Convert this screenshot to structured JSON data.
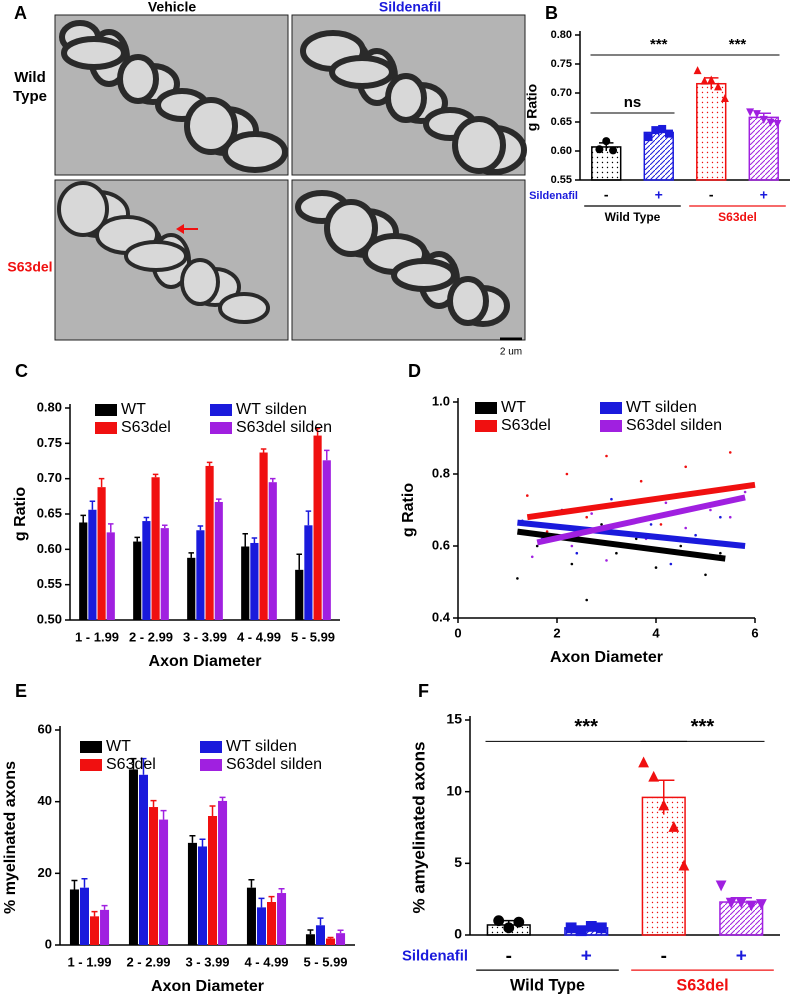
{
  "micrographs": {
    "panel": "A",
    "columns": [
      "Vehicle",
      "Sildenafil"
    ],
    "rows": [
      "Wild Type",
      "S63del"
    ],
    "scale_bar": "2 um"
  },
  "chart_data": [
    {
      "panel": "B",
      "type": "bar_dots",
      "y_label": "g Ratio",
      "ylim": [
        0.55,
        0.8
      ],
      "yticks": [
        0.55,
        {
          "value": 0.6,
          "label": "0.60"
        },
        0.65,
        {
          "value": 0.7,
          "label": "0.70"
        },
        0.75,
        {
          "value": 0.8,
          "label": "0.80"
        }
      ],
      "categories": [
        "-",
        "+",
        "-",
        "+"
      ],
      "colors": [
        "#000000",
        "#1a1adc",
        "#f01010",
        "#a020e0"
      ],
      "values": [
        0.607,
        0.632,
        0.716,
        0.658
      ],
      "errors": [
        0.007,
        0.005,
        0.01,
        0.007
      ],
      "points": [
        [
          0.603,
          0.617,
          0.601
        ],
        [
          0.624,
          0.636,
          0.638,
          0.63
        ],
        [
          0.738,
          0.72,
          0.722,
          0.71,
          0.69
        ],
        [
          0.668,
          0.665,
          0.655,
          0.65,
          0.648
        ]
      ],
      "row_label": "Sildenafil",
      "group_labels": [
        "Wild Type",
        "S63del"
      ],
      "annotations": [
        {
          "text": "***",
          "between": [
            0,
            2
          ]
        },
        {
          "text": "ns",
          "between": [
            0,
            1
          ]
        },
        {
          "text": "***",
          "between": [
            2,
            3
          ]
        }
      ]
    },
    {
      "panel": "C",
      "type": "grouped_bar",
      "y_label": "g  Ratio",
      "x_label": "Axon Diameter",
      "ylim": [
        0.5,
        0.8
      ],
      "yticks": [
        {
          "value": 0.5,
          "label": "0.50"
        },
        0.55,
        {
          "value": 0.6,
          "label": "0.60"
        },
        0.65,
        {
          "value": 0.7,
          "label": "0.70"
        },
        0.75,
        {
          "value": 0.8,
          "label": "0.80"
        }
      ],
      "categories": [
        "1 - 1.99",
        "2 - 2.99",
        "3 - 3.99",
        "4 - 4.99",
        "5 - 5.99"
      ],
      "series": [
        {
          "name": "WT",
          "color": "#000000",
          "values": [
            0.638,
            0.611,
            0.588,
            0.604,
            0.571
          ],
          "errors": [
            0.01,
            0.006,
            0.007,
            0.018,
            0.022
          ]
        },
        {
          "name": "WT silden",
          "color": "#1a1adc",
          "values": [
            0.656,
            0.64,
            0.627,
            0.609,
            0.634
          ],
          "errors": [
            0.012,
            0.005,
            0.006,
            0.007,
            0.02
          ]
        },
        {
          "name": "S63del",
          "color": "#f01010",
          "values": [
            0.688,
            0.702,
            0.718,
            0.737,
            0.761
          ],
          "errors": [
            0.012,
            0.004,
            0.005,
            0.005,
            0.01
          ]
        },
        {
          "name": "S63del silden",
          "color": "#a020e0",
          "values": [
            0.624,
            0.63,
            0.667,
            0.695,
            0.726
          ],
          "errors": [
            0.012,
            0.004,
            0.004,
            0.005,
            0.014
          ]
        }
      ]
    },
    {
      "panel": "D",
      "type": "scatter",
      "y_label": "g Ratio",
      "x_label": "Axon Diameter",
      "xlim": [
        0,
        6
      ],
      "xticks": [
        0,
        2,
        4,
        6
      ],
      "ylim": [
        0.4,
        1.0
      ],
      "yticks": [
        0.4,
        0.6,
        0.8,
        {
          "value": 1.0,
          "label": "1.0"
        }
      ],
      "series": [
        {
          "name": "WT",
          "color": "#000000",
          "x": [
            1.2,
            1.6,
            2.0,
            2.3,
            2.6,
            2.9,
            3.2,
            3.6,
            4.0,
            4.5,
            5.0,
            5.3
          ],
          "y": [
            0.51,
            0.6,
            0.63,
            0.55,
            0.45,
            0.66,
            0.58,
            0.62,
            0.54,
            0.6,
            0.52,
            0.58
          ],
          "fit_x": [
            1.2,
            5.4
          ],
          "fit_y": [
            0.64,
            0.565
          ]
        },
        {
          "name": "WT silden",
          "color": "#1a1adc",
          "x": [
            1.3,
            1.7,
            2.1,
            2.4,
            2.8,
            3.1,
            3.5,
            3.9,
            4.3,
            4.8,
            5.3,
            5.7
          ],
          "y": [
            0.67,
            0.62,
            0.7,
            0.58,
            0.64,
            0.73,
            0.6,
            0.66,
            0.55,
            0.63,
            0.68,
            0.6
          ],
          "fit_x": [
            1.2,
            5.8
          ],
          "fit_y": [
            0.665,
            0.6
          ]
        },
        {
          "name": "S63del",
          "color": "#f01010",
          "x": [
            1.4,
            1.8,
            2.2,
            2.6,
            3.0,
            3.3,
            3.7,
            4.1,
            4.6,
            5.0,
            5.5,
            5.8
          ],
          "y": [
            0.74,
            0.64,
            0.8,
            0.68,
            0.85,
            0.72,
            0.78,
            0.66,
            0.82,
            0.75,
            0.86,
            0.77
          ],
          "fit_x": [
            1.4,
            6.0
          ],
          "fit_y": [
            0.68,
            0.77
          ]
        },
        {
          "name": "S63del silden",
          "color": "#a020e0",
          "x": [
            1.5,
            1.9,
            2.3,
            2.7,
            3.0,
            3.4,
            3.8,
            4.2,
            4.6,
            5.1,
            5.5,
            5.8
          ],
          "y": [
            0.57,
            0.63,
            0.6,
            0.69,
            0.56,
            0.66,
            0.62,
            0.72,
            0.65,
            0.7,
            0.68,
            0.75
          ],
          "fit_x": [
            1.6,
            5.8
          ],
          "fit_y": [
            0.61,
            0.735
          ]
        }
      ]
    },
    {
      "panel": "E",
      "type": "grouped_bar",
      "y_label": "% myelinated axons",
      "x_label": "Axon Diameter",
      "ylim": [
        0,
        60
      ],
      "yticks": [
        0,
        20,
        40,
        60
      ],
      "categories": [
        "1 - 1.99",
        "2 - 2.99",
        "3 - 3.99",
        "4 - 4.99",
        "5 - 5.99"
      ],
      "series": [
        {
          "name": "WT",
          "color": "#000000",
          "values": [
            15.5,
            49,
            28.5,
            16,
            3
          ],
          "errors": [
            2.5,
            3,
            2,
            2.2,
            1.2
          ]
        },
        {
          "name": "WT silden",
          "color": "#1a1adc",
          "values": [
            16,
            47.5,
            27.5,
            10.5,
            5.5
          ],
          "errors": [
            2.5,
            4.5,
            2,
            2.5,
            2
          ]
        },
        {
          "name": "S63del",
          "color": "#f01010",
          "values": [
            8,
            38.5,
            36,
            12,
            1.8
          ],
          "errors": [
            1.3,
            1.8,
            2.8,
            1.5,
            0.3
          ]
        },
        {
          "name": "S63del silden",
          "color": "#a020e0",
          "values": [
            9.8,
            35,
            40.2,
            14.5,
            3.3
          ],
          "errors": [
            1.2,
            2.5,
            1,
            1.2,
            0.8
          ]
        }
      ]
    },
    {
      "panel": "F",
      "type": "bar_dots",
      "y_label": "% amyelinated axons",
      "ylim": [
        0,
        15
      ],
      "yticks": [
        0,
        5,
        10,
        15
      ],
      "categories": [
        "-",
        "+",
        "-",
        "+"
      ],
      "colors": [
        "#000000",
        "#1a1adc",
        "#f01010",
        "#a020e0"
      ],
      "values": [
        0.7,
        0.5,
        9.6,
        2.3
      ],
      "errors": [
        0.3,
        0.1,
        1.2,
        0.3
      ],
      "points": [
        [
          1.0,
          0.5,
          0.9
        ],
        [
          0.5,
          0.3,
          0.6,
          0.5
        ],
        [
          12,
          11,
          9,
          7.5,
          4.8
        ],
        [
          3.5,
          2.3,
          2.3,
          2.1,
          2.2
        ]
      ],
      "row_label": "Sildenafil",
      "group_labels": [
        "Wild Type",
        "S63del"
      ],
      "annotations": [
        {
          "text": "***",
          "between": [
            0,
            2
          ]
        },
        {
          "text": "***",
          "between": [
            2,
            3
          ]
        }
      ]
    }
  ]
}
